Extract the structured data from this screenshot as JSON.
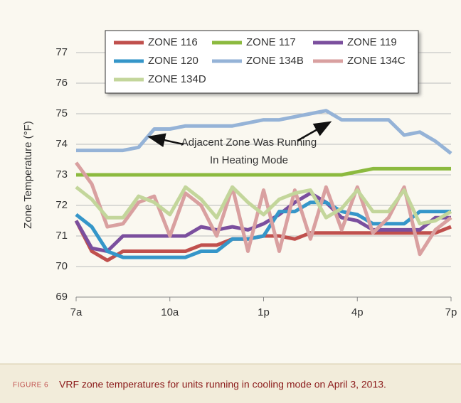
{
  "chart_data": {
    "type": "line",
    "ylabel": "Zone Temperature (°F)",
    "annotation": [
      "Adjacent Zone Was Running",
      "In Heating Mode"
    ],
    "x": [
      7,
      7.5,
      8,
      8.5,
      9,
      9.5,
      10,
      10.5,
      11,
      11.5,
      12,
      12.5,
      13,
      13.5,
      14,
      14.5,
      15,
      15.5,
      16,
      16.5,
      17,
      17.5,
      18,
      18.5,
      19
    ],
    "xlim": [
      7,
      19
    ],
    "xticks": [
      {
        "value": 7,
        "label": "7a"
      },
      {
        "value": 10,
        "label": "10a"
      },
      {
        "value": 13,
        "label": "1p"
      },
      {
        "value": 16,
        "label": "4p"
      },
      {
        "value": 19,
        "label": "7p"
      }
    ],
    "ylim": [
      69,
      77
    ],
    "yticks": [
      69,
      70,
      71,
      72,
      73,
      74,
      75,
      76,
      77
    ],
    "grid": true,
    "series": [
      {
        "name": "ZONE 116",
        "color": "#c0504d",
        "values": [
          71.5,
          70.5,
          70.2,
          70.5,
          70.5,
          70.5,
          70.5,
          70.5,
          70.7,
          70.7,
          70.9,
          70.9,
          71.0,
          71.0,
          70.9,
          71.1,
          71.1,
          71.1,
          71.1,
          71.1,
          71.1,
          71.1,
          71.1,
          71.1,
          71.3
        ]
      },
      {
        "name": "ZONE 117",
        "color": "#8cba3f",
        "values": [
          73,
          73,
          73,
          73,
          73,
          73,
          73,
          73,
          73,
          73,
          73,
          73,
          73,
          73,
          73,
          73,
          73,
          73,
          73.1,
          73.2,
          73.2,
          73.2,
          73.2,
          73.2,
          73.2
        ]
      },
      {
        "name": "ZONE 119",
        "color": "#7b4f9e",
        "values": [
          71.5,
          70.6,
          70.5,
          71.0,
          71.0,
          71.0,
          71.0,
          71.0,
          71.3,
          71.2,
          71.3,
          71.2,
          71.4,
          71.7,
          72.1,
          72.4,
          72.1,
          71.6,
          71.5,
          71.2,
          71.2,
          71.2,
          71.2,
          71.6,
          71.6
        ]
      },
      {
        "name": "ZONE 120",
        "color": "#3596c9",
        "values": [
          71.7,
          71.3,
          70.5,
          70.3,
          70.3,
          70.3,
          70.3,
          70.3,
          70.5,
          70.5,
          70.9,
          70.9,
          71.0,
          71.8,
          71.8,
          72.1,
          72.1,
          71.8,
          71.7,
          71.4,
          71.4,
          71.4,
          71.8,
          71.8,
          71.8
        ]
      },
      {
        "name": "ZONE 134B",
        "color": "#95b3d7",
        "values": [
          73.8,
          73.8,
          73.8,
          73.8,
          73.9,
          74.5,
          74.5,
          74.6,
          74.6,
          74.6,
          74.6,
          74.7,
          74.8,
          74.8,
          74.9,
          75.0,
          75.1,
          74.8,
          74.8,
          74.8,
          74.8,
          74.3,
          74.4,
          74.1,
          73.7
        ]
      },
      {
        "name": "ZONE 134C",
        "color": "#d9a0a0",
        "values": [
          73.4,
          72.7,
          71.3,
          71.4,
          72.1,
          72.3,
          71.0,
          72.4,
          72.0,
          71.0,
          72.6,
          70.5,
          72.5,
          70.5,
          72.5,
          70.9,
          72.6,
          71.2,
          72.6,
          71.1,
          71.6,
          72.6,
          70.4,
          71.2,
          71.6
        ]
      },
      {
        "name": "ZONE 134D",
        "color": "#c3d69b",
        "values": [
          72.6,
          72.2,
          71.6,
          71.6,
          72.3,
          72.1,
          71.7,
          72.6,
          72.2,
          71.6,
          72.6,
          72.1,
          71.7,
          72.2,
          72.4,
          72.5,
          71.6,
          71.9,
          72.5,
          71.8,
          71.8,
          72.5,
          71.4,
          71.5,
          71.8
        ]
      }
    ]
  },
  "figure_label": "FIGURE 6",
  "caption": "VRF zone temperatures for units running in cooling mode on April 3, 2013."
}
